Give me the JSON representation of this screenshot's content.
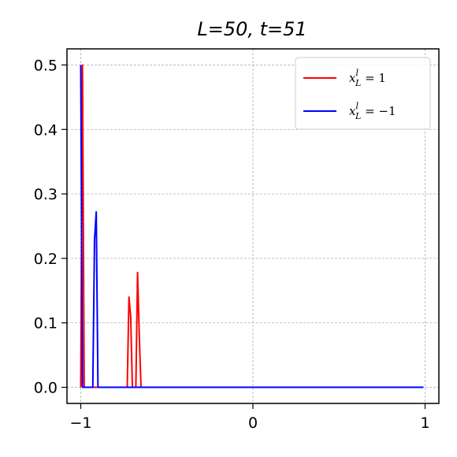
{
  "chart_data": {
    "type": "line",
    "title": "L=50, t=51",
    "xlabel": "",
    "ylabel": "",
    "xlim": [
      -1.08,
      1.08
    ],
    "ylim": [
      -0.025,
      0.525
    ],
    "x_ticks": [
      {
        "value": -1,
        "label": "−1"
      },
      {
        "value": 0,
        "label": "0"
      },
      {
        "value": 1,
        "label": "1"
      }
    ],
    "y_ticks": [
      {
        "value": 0.0,
        "label": "0.0"
      },
      {
        "value": 0.1,
        "label": "0.1"
      },
      {
        "value": 0.2,
        "label": "0.2"
      },
      {
        "value": 0.3,
        "label": "0.3"
      },
      {
        "value": 0.4,
        "label": "0.4"
      },
      {
        "value": 0.5,
        "label": "0.5"
      }
    ],
    "grid": true,
    "legend_position": "top-right",
    "series": [
      {
        "name": "x_L^l = 1",
        "legend_label": "x",
        "legend_sup": "l",
        "legend_sub": "L",
        "legend_rest": " = 1",
        "color": "#ff0000",
        "x": [
          -1.0,
          -0.99,
          -0.98,
          -0.97,
          -0.96,
          -0.95,
          -0.94,
          -0.93,
          -0.92,
          -0.91,
          -0.9,
          -0.89,
          -0.88,
          -0.87,
          -0.86,
          -0.85,
          -0.84,
          -0.83,
          -0.82,
          -0.81,
          -0.8,
          -0.79,
          -0.78,
          -0.77,
          -0.76,
          -0.75,
          -0.74,
          -0.73,
          -0.72,
          -0.71,
          -0.7,
          -0.69,
          -0.68,
          -0.67,
          -0.66,
          -0.65,
          -0.64,
          -0.63,
          -0.62,
          -0.6,
          -0.4,
          -0.2,
          0.0,
          0.2,
          0.4,
          0.6,
          0.8,
          0.99
        ],
        "y": [
          0.0,
          0.5,
          0.0,
          0.0,
          0.0,
          0.0,
          0.0,
          0.0,
          0.0,
          0.0,
          0.0,
          0.0,
          0.0,
          0.0,
          0.0,
          0.0,
          0.0,
          0.0,
          0.0,
          0.0,
          0.0,
          0.0,
          0.0,
          0.0,
          0.0,
          0.0,
          0.0,
          0.0,
          0.14,
          0.11,
          0.0,
          0.0,
          0.0,
          0.178,
          0.08,
          0.0,
          0.0,
          0.0,
          0.0,
          0.0,
          0.0,
          0.0,
          0.0,
          0.0,
          0.0,
          0.0,
          0.0,
          0.0
        ]
      },
      {
        "name": "x_L^l = -1",
        "legend_label": "x",
        "legend_sup": "l",
        "legend_sub": "L",
        "legend_rest": " = −1",
        "color": "#0000ff",
        "x": [
          -1.0,
          -0.99,
          -0.98,
          -0.97,
          -0.96,
          -0.95,
          -0.94,
          -0.93,
          -0.92,
          -0.91,
          -0.9,
          -0.89,
          -0.88,
          -0.87,
          -0.86,
          -0.85,
          -0.8,
          -0.6,
          -0.4,
          -0.2,
          0.0,
          0.2,
          0.4,
          0.6,
          0.8,
          0.99
        ],
        "y": [
          0.5,
          0.0,
          0.0,
          0.0,
          0.0,
          0.0,
          0.0,
          0.0,
          0.228,
          0.272,
          0.0,
          0.0,
          0.0,
          0.0,
          0.0,
          0.0,
          0.0,
          0.0,
          0.0,
          0.0,
          0.0,
          0.0,
          0.0,
          0.0,
          0.0,
          0.0
        ]
      }
    ]
  }
}
